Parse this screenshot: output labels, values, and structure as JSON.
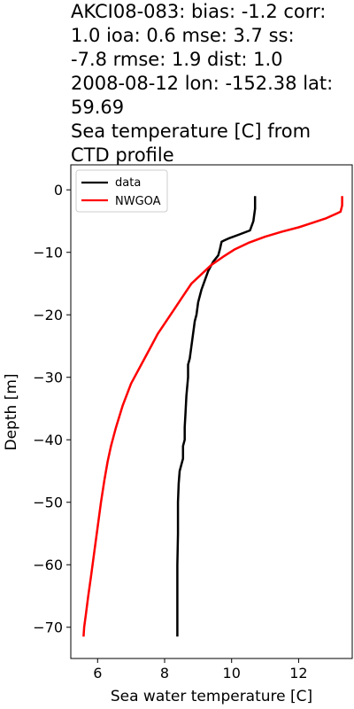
{
  "title_lines": [
    "AKCI08-083: bias: -1.2  corr:",
    "1.0  ioa: 0.6  mse: 3.7  ss:",
    "-7.8  rmse: 1.9  dist: 1.0",
    "2008-08-12 lon: -152.38 lat:",
    "59.69",
    "Sea temperature [C] from",
    "CTD profile"
  ],
  "chart_data": {
    "type": "line",
    "title": "AKCI08-083: bias: -1.2  corr: 1.0  ioa: 0.6  mse: 3.7  ss: -7.8  rmse: 1.9  dist: 1.0 2008-08-12 lon: -152.38 lat: 59.69 Sea temperature [C] from CTD profile",
    "xlabel": "Sea water temperature [C]",
    "ylabel": "Depth [m]",
    "xlim": [
      5.2,
      13.6
    ],
    "ylim": [
      -75,
      4
    ],
    "xticks": [
      "6",
      "8",
      "10",
      "12"
    ],
    "yticks": [
      "0",
      "−10",
      "−20",
      "−30",
      "−40",
      "−50",
      "−60",
      "−70"
    ],
    "grid": false,
    "legend": "top-left",
    "series": [
      {
        "name": "data",
        "color": "#000000",
        "x": [
          10.7,
          10.7,
          10.65,
          10.55,
          10.2,
          9.9,
          9.7,
          9.65,
          9.6,
          9.45,
          9.3,
          9.2,
          9.1,
          9.0,
          8.95,
          8.9,
          8.85,
          8.8,
          8.75,
          8.7,
          8.7,
          8.65,
          8.62,
          8.6,
          8.6,
          8.55,
          8.55,
          8.5,
          8.45,
          8.42,
          8.4,
          8.4,
          8.38,
          8.38,
          8.38,
          8.38,
          8.38
        ],
        "y": [
          -1,
          -3,
          -5,
          -6.5,
          -7.2,
          -7.8,
          -8.3,
          -9.5,
          -10.5,
          -11.5,
          -13,
          -14.5,
          -16,
          -18,
          -20,
          -21,
          -23,
          -25,
          -27,
          -28,
          -30,
          -33,
          -36,
          -38,
          -40,
          -41,
          -43,
          -44,
          -45,
          -47,
          -50,
          -55,
          -60,
          -65,
          -68,
          -70,
          -71.5
        ]
      },
      {
        "name": "NWGOA",
        "color": "#ff0000",
        "x": [
          13.3,
          13.3,
          13.25,
          13.05,
          12.8,
          12.4,
          12.0,
          11.5,
          11.0,
          10.5,
          10.1,
          9.75,
          9.4,
          9.1,
          8.8,
          8.55,
          8.3,
          8.05,
          7.8,
          7.55,
          7.3,
          7.0,
          6.75,
          6.55,
          6.4,
          6.3,
          6.2,
          6.1,
          6.0,
          5.9,
          5.8,
          5.72,
          5.65,
          5.6,
          5.58
        ],
        "y": [
          -1,
          -2.5,
          -3.5,
          -4,
          -4.6,
          -5.3,
          -6,
          -6.7,
          -7.5,
          -8.5,
          -9.5,
          -10.7,
          -12,
          -13.5,
          -15,
          -17,
          -19,
          -21,
          -23,
          -25.5,
          -28,
          -31,
          -34.5,
          -38,
          -41,
          -43.5,
          -46.5,
          -50,
          -54,
          -58,
          -62,
          -65,
          -68,
          -70,
          -71.5
        ]
      }
    ]
  }
}
